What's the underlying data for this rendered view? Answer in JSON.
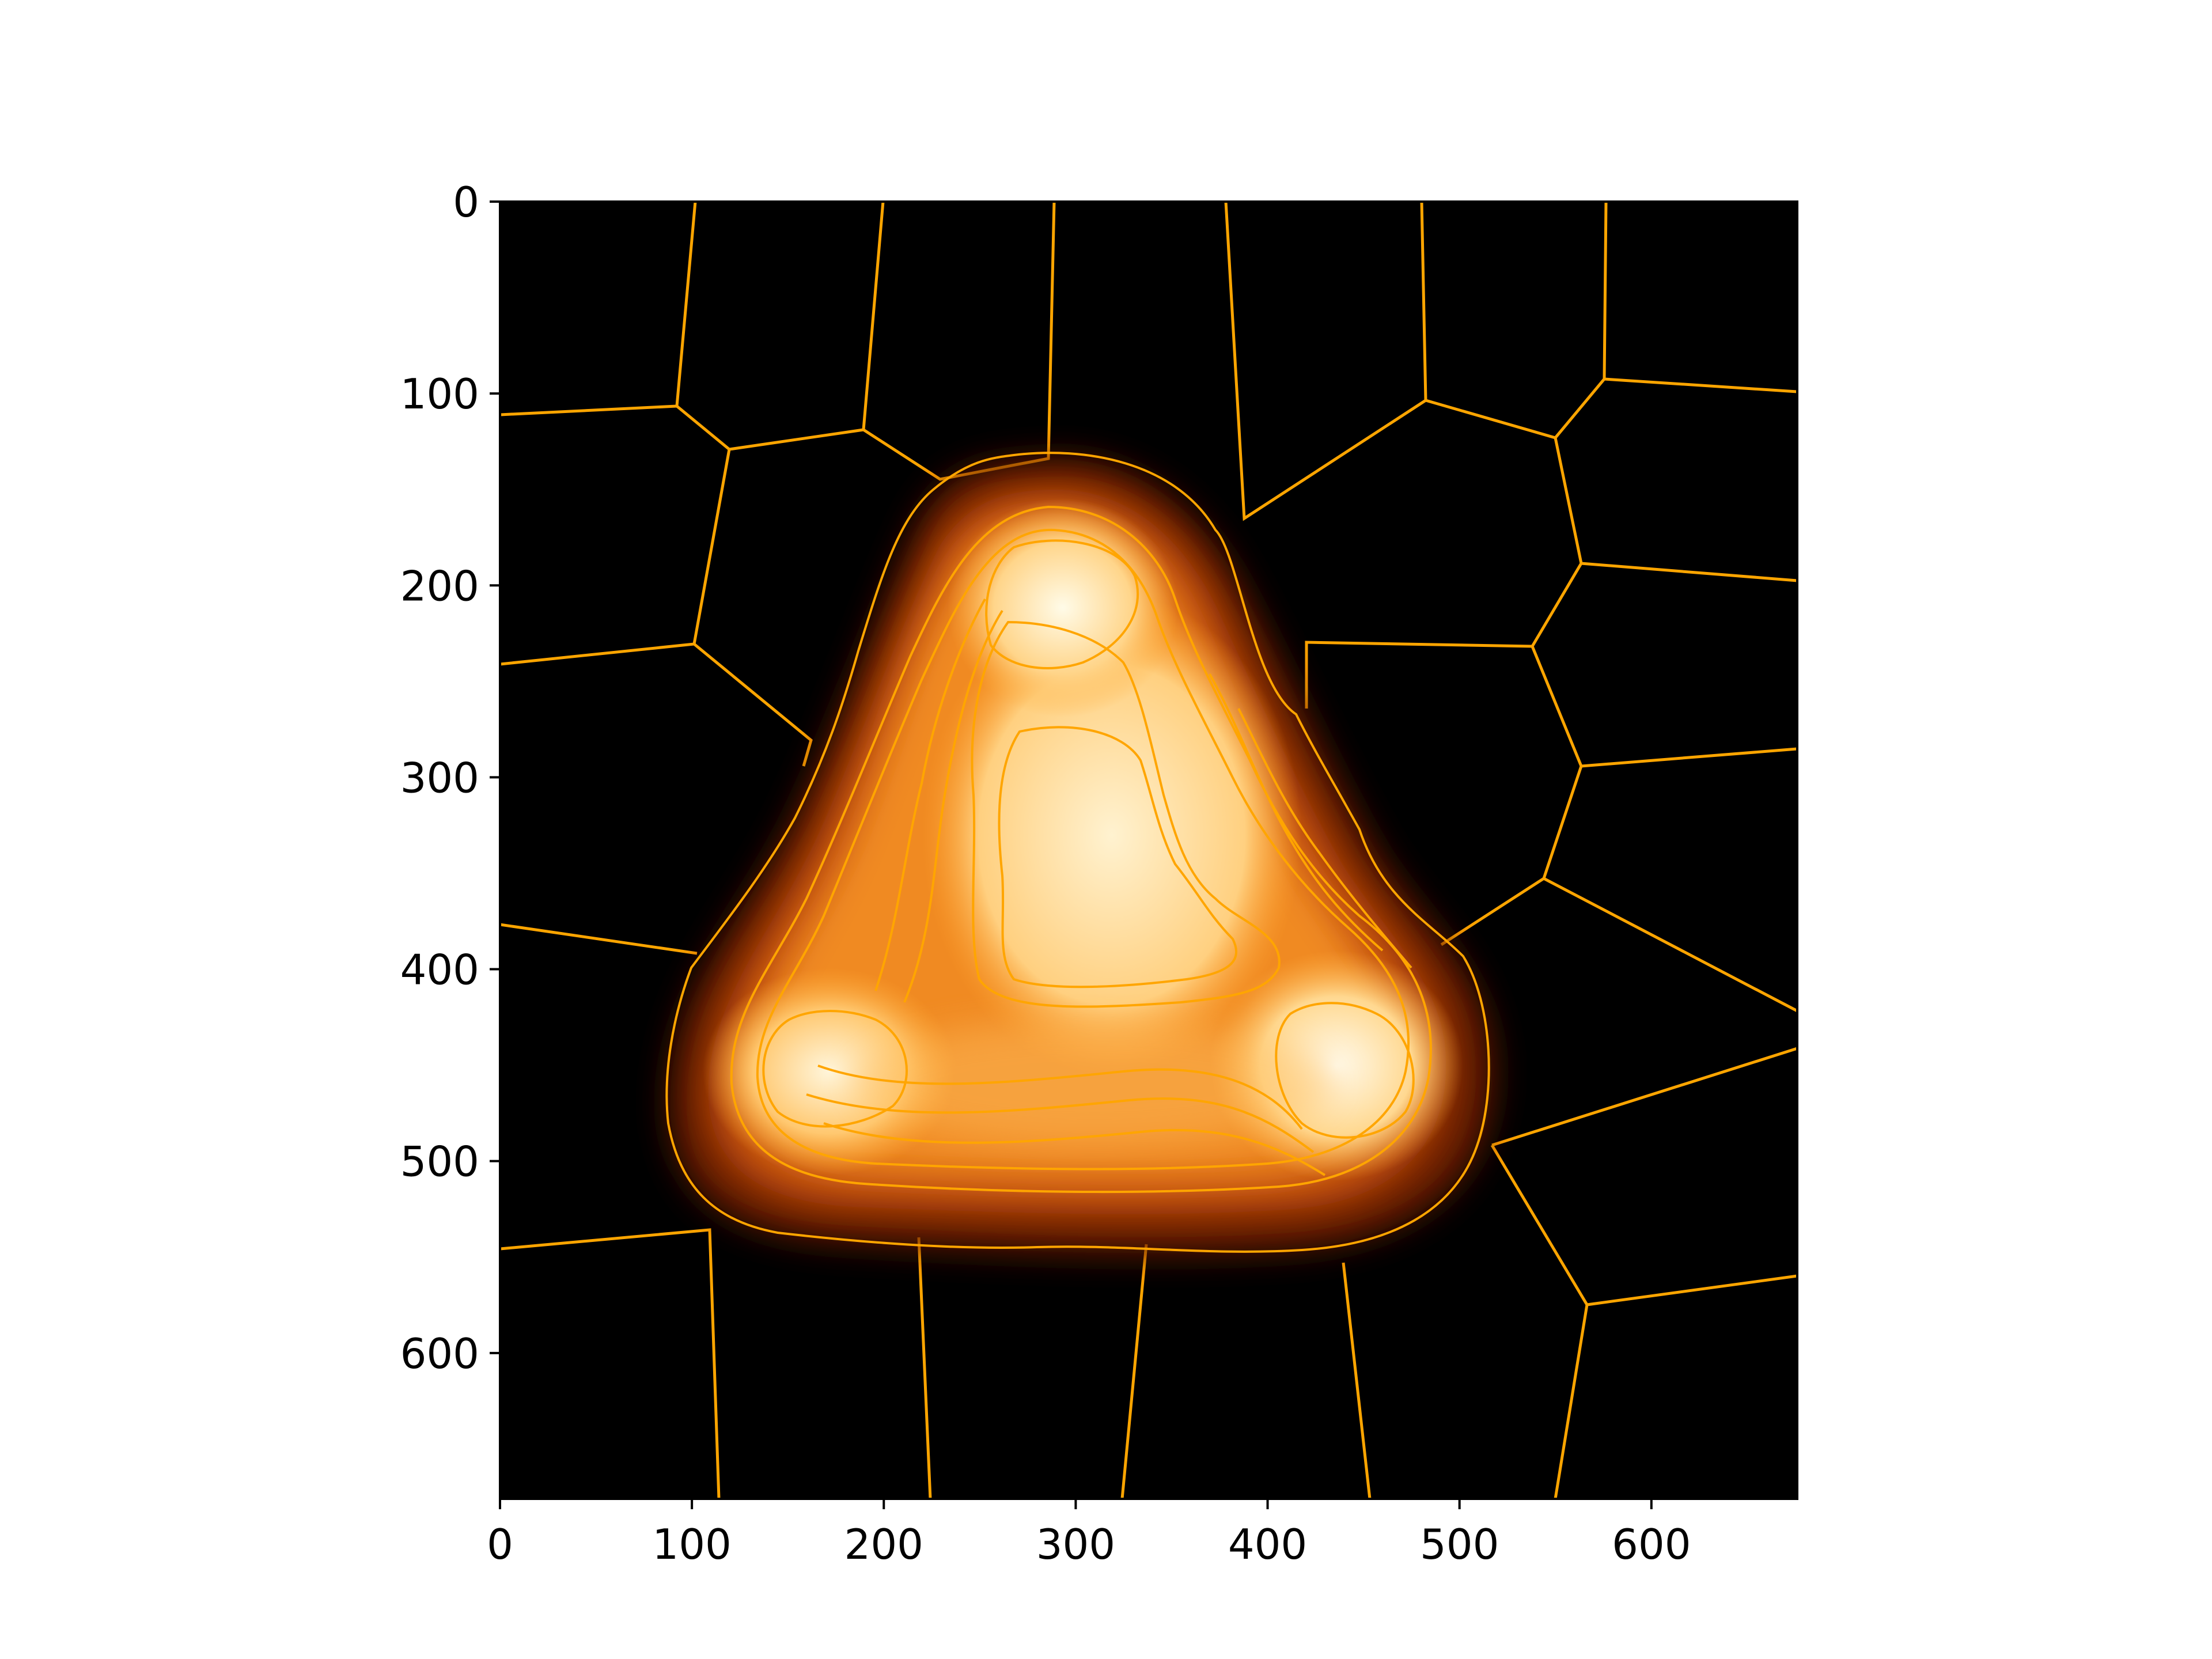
{
  "image": {
    "description_free": true,
    "colormap": "afmhot",
    "overlay_color": "#FFA500",
    "background_color": "#000000"
  },
  "axes": {
    "xlim": [
      0,
      676
    ],
    "ylim": [
      676,
      0
    ],
    "x_ticks": [
      0,
      100,
      200,
      300,
      400,
      500,
      600
    ],
    "y_ticks": [
      0,
      100,
      200,
      300,
      400,
      500,
      600
    ],
    "x_tick_labels": [
      "0",
      "100",
      "200",
      "300",
      "400",
      "500",
      "600"
    ],
    "y_tick_labels": [
      "0",
      "100",
      "200",
      "300",
      "400",
      "500",
      "600"
    ]
  }
}
